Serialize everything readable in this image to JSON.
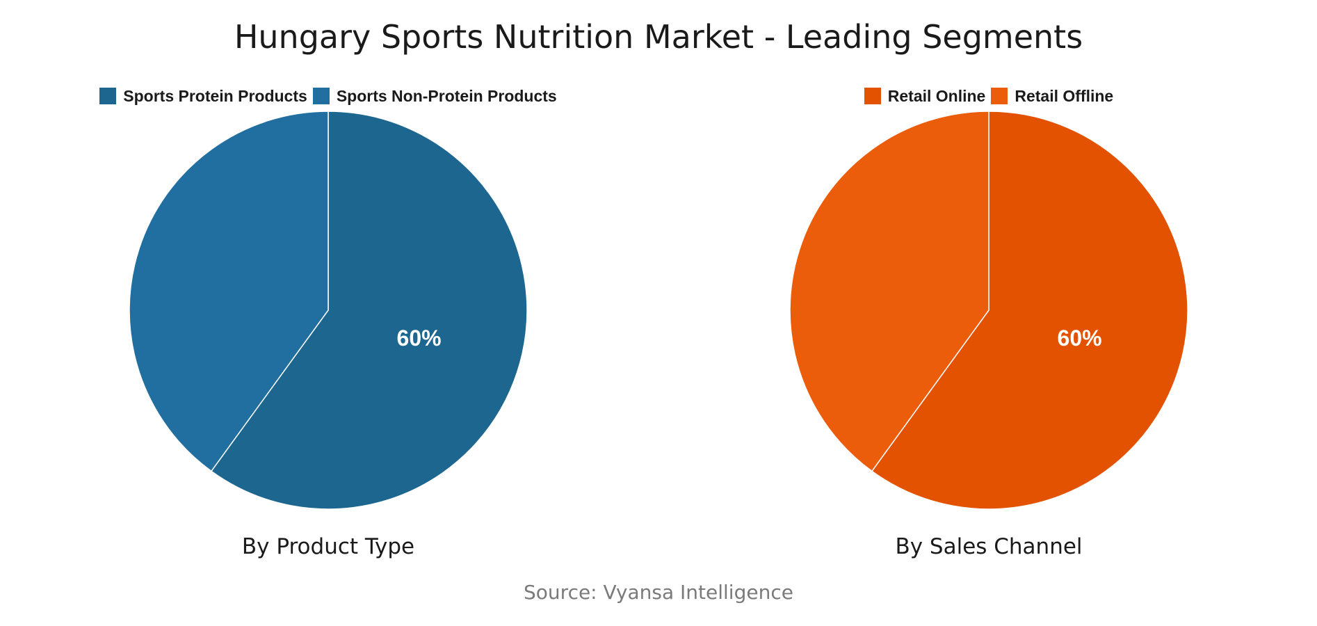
{
  "title": "Hungary Sports Nutrition Market - Leading Segments",
  "source": "Source: Vyansa Intelligence",
  "chart_data": [
    {
      "type": "pie",
      "title": "By Product Type",
      "slices": [
        {
          "label": "Sports Protein Products",
          "value": 60,
          "color": "#1c6690",
          "display": "60%"
        },
        {
          "label": "Sports Non-Protein Products",
          "value": 40,
          "color": "#216fa0",
          "display": ""
        }
      ],
      "legend_position": "top",
      "start_angle": "12 o'clock, clockwise"
    },
    {
      "type": "pie",
      "title": "By Sales Channel",
      "slices": [
        {
          "label": "Retail Online",
          "value": 60,
          "color": "#e35200",
          "display": "60%"
        },
        {
          "label": "Retail Offline",
          "value": 40,
          "color": "#eb5c0b",
          "display": ""
        }
      ],
      "legend_position": "top",
      "start_angle": "12 o'clock, clockwise"
    }
  ]
}
